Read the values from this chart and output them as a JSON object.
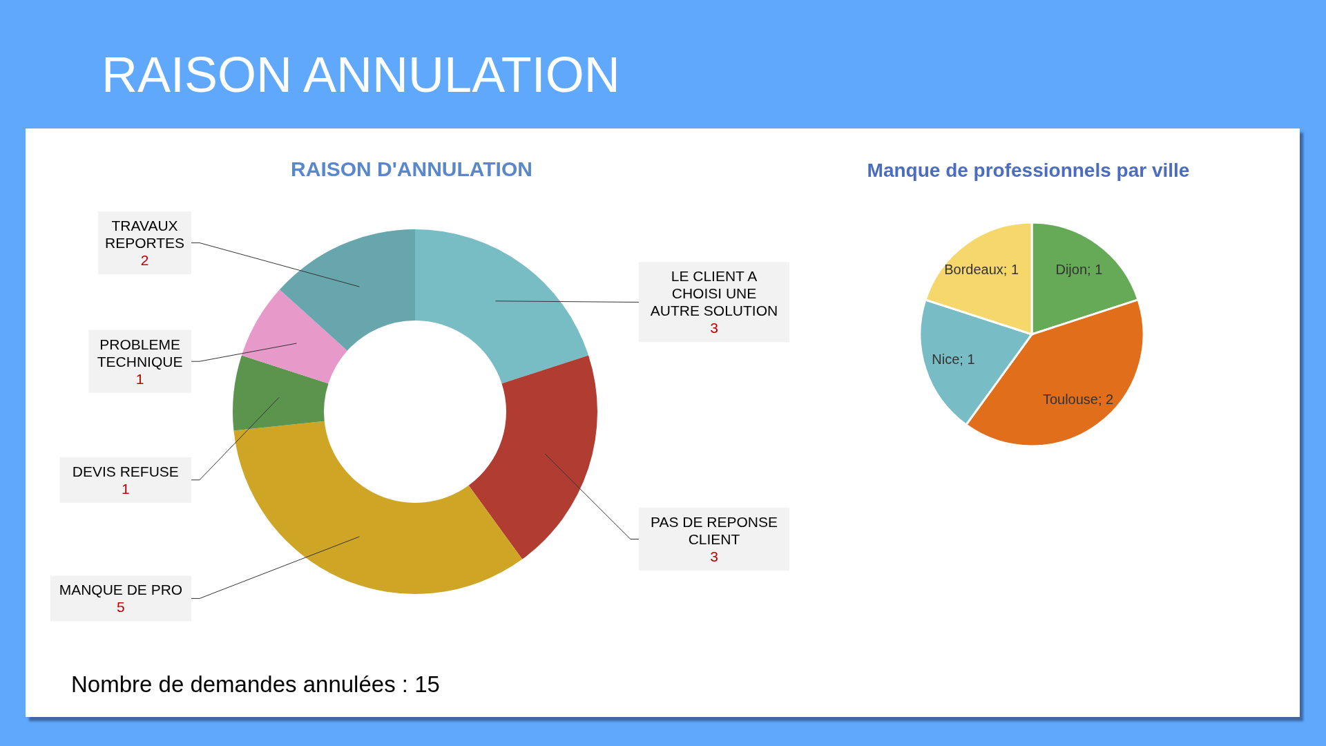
{
  "chart_data": [
    {
      "type": "other",
      "title": "RAISON ANNULATION"
    },
    {
      "type": "donut",
      "title": "RAISON D'ANNULATION",
      "categories": [
        "LE CLIENT A CHOISI UNE AUTRE SOLUTION",
        "PAS DE REPONSE CLIENT",
        "MANQUE DE PRO",
        "DEVIS REFUSE",
        "PROBLEME TECHNIQUE",
        "TRAVAUX REPORTES"
      ],
      "values": [
        3,
        3,
        5,
        1,
        1,
        2
      ],
      "colors": [
        "#78bcc4",
        "#b03c32",
        "#cfa526",
        "#5b944d",
        "#e799c9",
        "#68a6ae"
      ],
      "data_labels": true,
      "annotations": [
        "Nombre de demandes annulées : 15"
      ]
    },
    {
      "type": "pie",
      "title": "Manque de professionnels par ville",
      "categories": [
        "Dijon",
        "Toulouse",
        "Nice",
        "Bordeaux"
      ],
      "values": [
        1,
        2,
        1,
        1
      ],
      "colors": [
        "#66aa57",
        "#e06e1b",
        "#78bcc5",
        "#f5d76c"
      ],
      "value_labels": [
        "; 1",
        "; 2",
        "; 1",
        "; 1"
      ]
    }
  ]
}
